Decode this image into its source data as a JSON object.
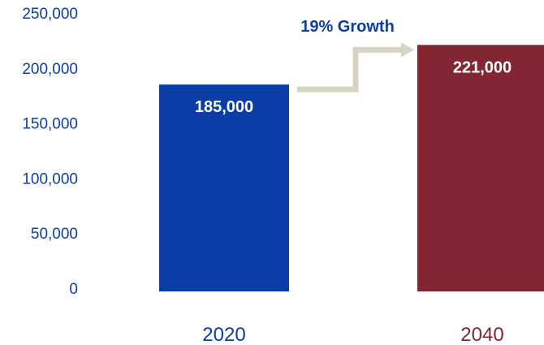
{
  "chart_data": {
    "type": "bar",
    "categories": [
      "2020",
      "2040"
    ],
    "values": [
      185000,
      221000
    ],
    "data_labels": [
      "185,000",
      "221,000"
    ],
    "yticks": [
      0,
      50000,
      100000,
      150000,
      200000,
      250000
    ],
    "ytick_labels": [
      "0",
      "50,000",
      "100,000",
      "150,000",
      "200,000",
      "250,000"
    ],
    "ylim": [
      0,
      250000
    ],
    "annotation": "19% Growth",
    "grid": false,
    "legend": "none",
    "colors": {
      "bars": [
        "#0a3ea6",
        "#832634"
      ],
      "category_labels": [
        "#0a3ea6",
        "#832634"
      ],
      "axis_text": "#0a3ea6",
      "annotation": "#0a3ea6",
      "arrow": "#d8d4c4"
    }
  }
}
